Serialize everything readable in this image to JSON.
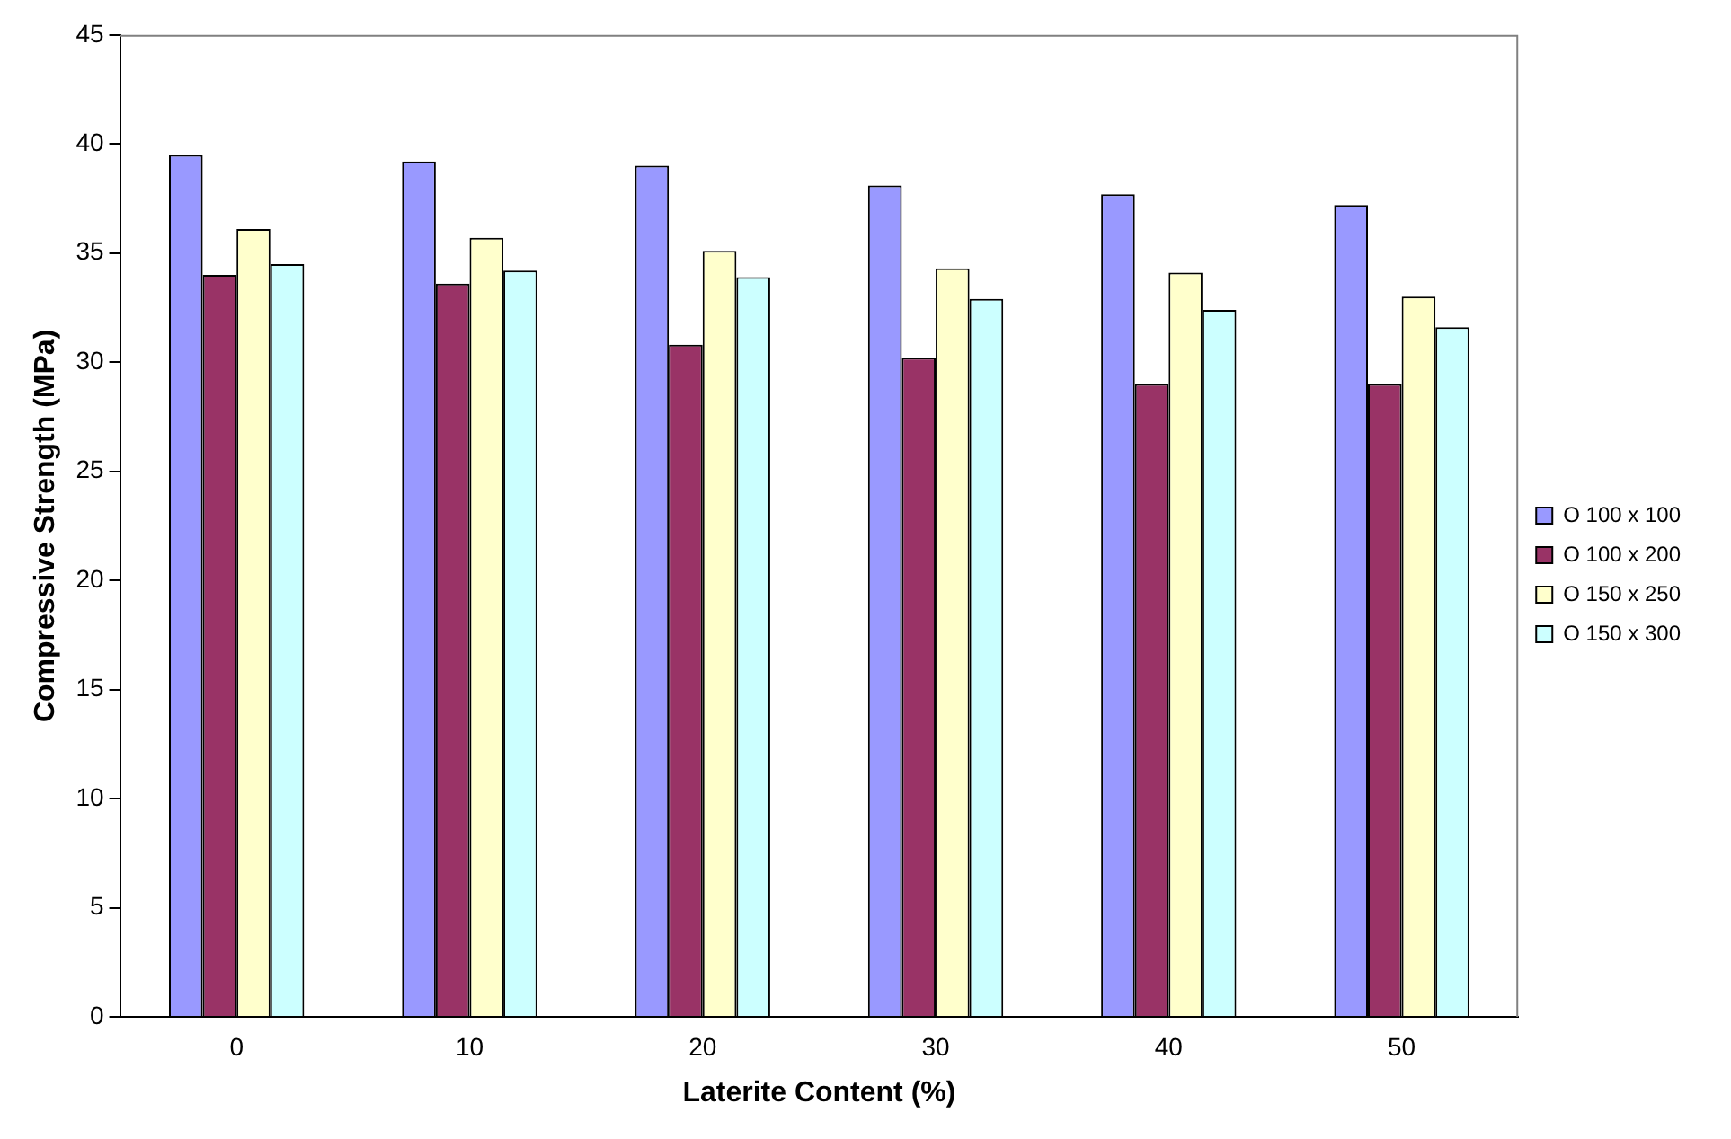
{
  "chart_data": {
    "type": "bar",
    "xlabel": "Laterite Content (%)",
    "ylabel": "Compressive Strength (MPa)",
    "categories": [
      "0",
      "10",
      "20",
      "30",
      "40",
      "50"
    ],
    "series": [
      {
        "name": "O 100 x 100",
        "color": "#9999ff",
        "values": [
          39.5,
          39.2,
          39.0,
          38.1,
          37.7,
          37.2
        ]
      },
      {
        "name": "O 100 x 200",
        "color": "#993366",
        "values": [
          34.0,
          33.6,
          30.8,
          30.2,
          29.0,
          29.0
        ]
      },
      {
        "name": "O 150 x 250",
        "color": "#ffffcc",
        "values": [
          36.1,
          35.7,
          35.1,
          34.3,
          34.1,
          33.0
        ]
      },
      {
        "name": "O 150 x 300",
        "color": "#ccffff",
        "values": [
          34.5,
          34.2,
          33.9,
          32.9,
          32.4,
          31.6
        ]
      }
    ],
    "ylim": [
      0,
      45
    ],
    "yticks": [
      0,
      5,
      10,
      15,
      20,
      25,
      30,
      35,
      40,
      45
    ],
    "grid": false,
    "legend": "right"
  }
}
